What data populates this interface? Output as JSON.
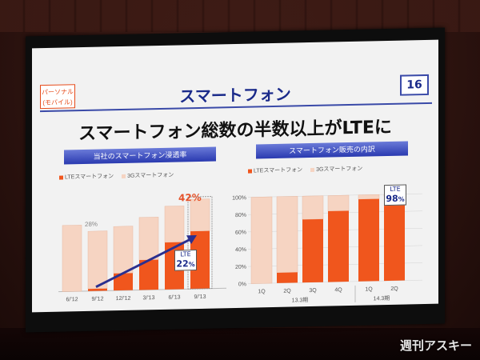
{
  "slide": {
    "badge": [
      "パーソナル",
      "(モバイル)"
    ],
    "title": "スマートフォン",
    "page_number": "16",
    "headline": "スマートフォン総数の半数以上がLTEに"
  },
  "left_chart": {
    "section_title": "当社のスマートフォン浸透率",
    "legend": [
      "LTEスマートフォン",
      "3Gスマートフォン"
    ],
    "callout_key": "LTE",
    "callout_value": "22",
    "callout_unit": "%",
    "peak_label": "42%",
    "early_label": "28%"
  },
  "right_chart": {
    "section_title": "スマートフォン販売の内訳",
    "legend": [
      "LTEスマートフォン",
      "3Gスマートフォン"
    ],
    "callout_key": "LTE",
    "callout_value": "98",
    "callout_unit": "%",
    "year_labels": [
      "13.3期",
      "14.3期"
    ]
  },
  "watermark": "週刊アスキー",
  "colors": {
    "lte": "#f0561d",
    "g3": "#f6d4c2",
    "accent_blue": "#1a2a8a",
    "arrow": "#2a2f8f"
  },
  "chart_data": [
    {
      "type": "bar",
      "title": "当社のスマートフォン浸透率",
      "categories": [
        "6/'12",
        "9/'12",
        "12/'12",
        "3/'13",
        "6/'13",
        "9/'13"
      ],
      "series": [
        {
          "name": "LTEスマートフォン",
          "values": [
            0,
            1,
            8,
            14,
            22,
            27
          ]
        },
        {
          "name": "3Gスマートフォン",
          "values": [
            31,
            27,
            22,
            20,
            17,
            15
          ]
        }
      ],
      "ylim": [
        0,
        45
      ],
      "annotations": [
        "28%",
        "42%",
        "LTE 22%"
      ]
    },
    {
      "type": "bar",
      "title": "スマートフォン販売の内訳",
      "categories": [
        "1Q",
        "2Q",
        "3Q",
        "4Q",
        "1Q",
        "2Q"
      ],
      "groups": [
        "13.3期",
        "14.3期"
      ],
      "series": [
        {
          "name": "LTEスマートフォン",
          "values": [
            0,
            12,
            73,
            82,
            95,
            98
          ]
        },
        {
          "name": "3Gスマートフォン",
          "values": [
            100,
            88,
            27,
            18,
            5,
            2
          ]
        }
      ],
      "ylim": [
        0,
        100
      ],
      "yticks": [
        "0%",
        "20%",
        "40%",
        "60%",
        "80%",
        "100%"
      ],
      "annotations": [
        "LTE 98%"
      ]
    }
  ]
}
